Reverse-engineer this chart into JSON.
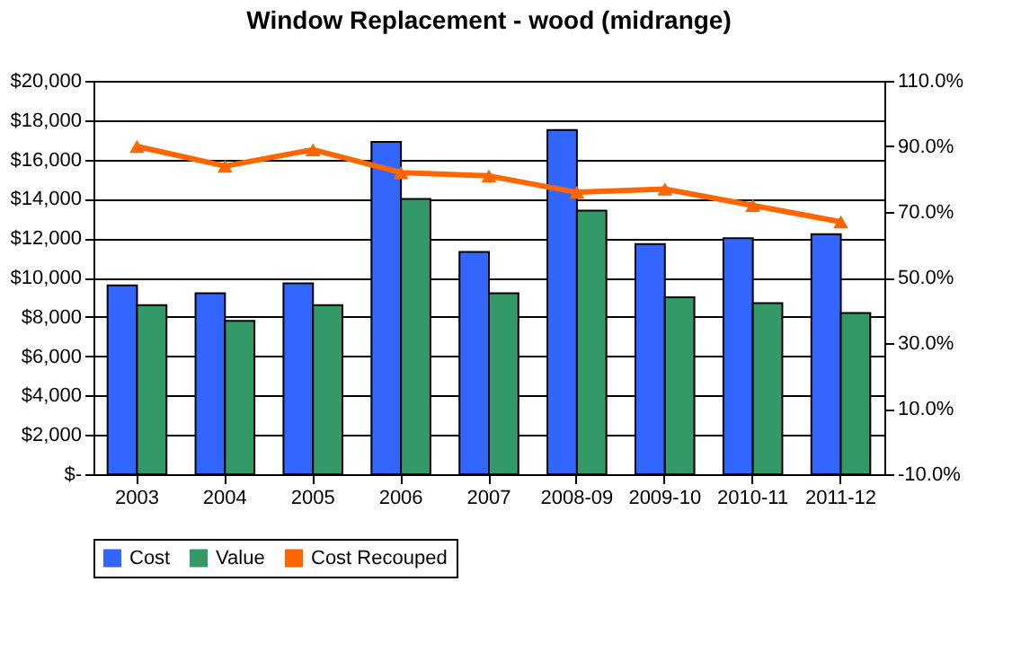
{
  "chart_data": {
    "type": "bar",
    "title": "Window Replacement - wood (midrange)",
    "categories": [
      "2003",
      "2004",
      "2005",
      "2006",
      "2007",
      "2008-09",
      "2009-10",
      "2010-11",
      "2011-12"
    ],
    "series": [
      {
        "name": "Cost",
        "color": "#3366ff",
        "values": [
          9600,
          9200,
          9700,
          16900,
          11300,
          17500,
          11700,
          12000,
          12200
        ]
      },
      {
        "name": "Value",
        "color": "#339966",
        "values": [
          8600,
          7800,
          8600,
          14000,
          9200,
          13400,
          9000,
          8700,
          8200
        ]
      },
      {
        "name": "Cost Recouped",
        "type": "line",
        "axis": "y2",
        "color": "#ff6600",
        "marker": "triangle",
        "values": [
          90,
          84,
          89,
          82,
          81,
          76,
          77,
          72,
          67
        ]
      }
    ],
    "ylim": [
      0,
      20000
    ],
    "yticks": [
      {
        "value": 0,
        "label": "$-"
      },
      {
        "value": 2000,
        "label": "$2,000"
      },
      {
        "value": 4000,
        "label": "$4,000"
      },
      {
        "value": 6000,
        "label": "$6,000"
      },
      {
        "value": 8000,
        "label": "$8,000"
      },
      {
        "value": 10000,
        "label": "$10,000"
      },
      {
        "value": 12000,
        "label": "$12,000"
      },
      {
        "value": 14000,
        "label": "$14,000"
      },
      {
        "value": 16000,
        "label": "$16,000"
      },
      {
        "value": 18000,
        "label": "$18,000"
      },
      {
        "value": 20000,
        "label": "$20,000"
      }
    ],
    "y2lim": [
      -10,
      110
    ],
    "y2ticks": [
      {
        "value": -10,
        "label": "-10.0%"
      },
      {
        "value": 10,
        "label": "10.0%"
      },
      {
        "value": 30,
        "label": "30.0%"
      },
      {
        "value": 50,
        "label": "50.0%"
      },
      {
        "value": 70,
        "label": "70.0%"
      },
      {
        "value": 90,
        "label": "90.0%"
      },
      {
        "value": 110,
        "label": "110.0%"
      }
    ],
    "grid": "y",
    "legend": "bottom"
  }
}
